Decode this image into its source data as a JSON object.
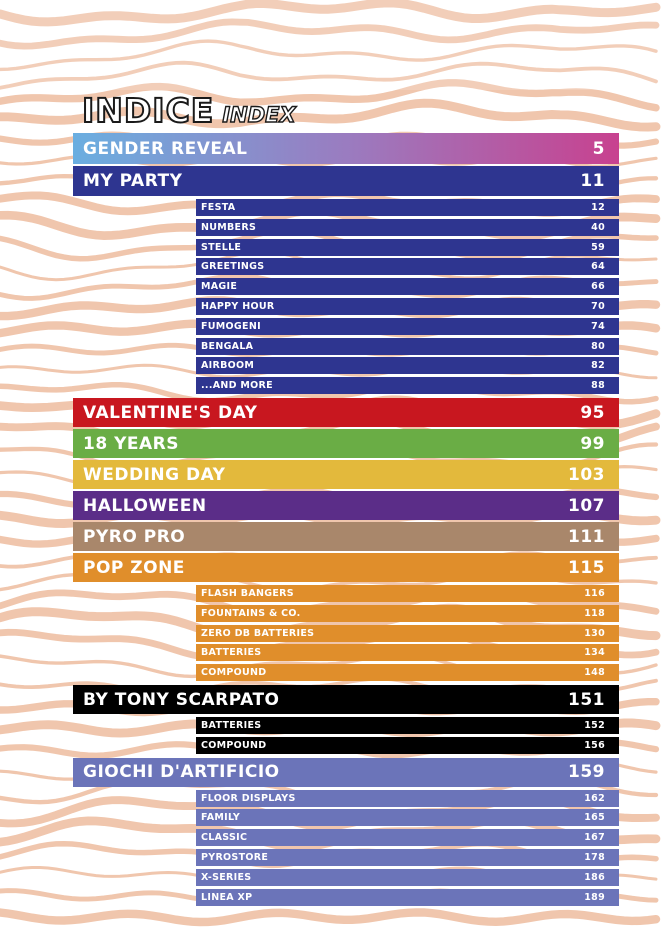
{
  "title": {
    "main": "INDICE",
    "sub": "INDEX"
  },
  "colors": {
    "gender_reveal_gradient": [
      "#6aaee0",
      "#9a7cc0",
      "#c8418f"
    ],
    "my_party": "#2e3590",
    "valentines_day": "#c8171f",
    "eighteen_years": "#6aad45",
    "wedding_day": "#e3b93c",
    "halloween": "#5b2d88",
    "pyro_pro": "#a9876b",
    "pop_zone": "#e08e2b",
    "by_tony_scarpato": "#000000",
    "giochi_dartificio": "#6b74b9",
    "background_waves": "#f0c6ad"
  },
  "sections": [
    {
      "label": "GENDER REVEAL",
      "page": "5",
      "color": "gender_reveal_gradient",
      "items": []
    },
    {
      "label": "MY PARTY",
      "page": "11",
      "color": "my_party",
      "items": [
        {
          "label": "FESTA",
          "page": "12"
        },
        {
          "label": "NUMBERS",
          "page": "40"
        },
        {
          "label": "STELLE",
          "page": "59"
        },
        {
          "label": "GREETINGS",
          "page": "64"
        },
        {
          "label": "MAGIE",
          "page": "66"
        },
        {
          "label": "HAPPY HOUR",
          "page": "70"
        },
        {
          "label": "FUMOGENI",
          "page": "74"
        },
        {
          "label": "BENGALA",
          "page": "80"
        },
        {
          "label": "AIRBOOM",
          "page": "82"
        },
        {
          "label": "...AND MORE",
          "page": "88"
        }
      ]
    },
    {
      "label": "VALENTINE'S DAY",
      "page": "95",
      "color": "valentines_day",
      "items": []
    },
    {
      "label": "18 YEARS",
      "page": "99",
      "color": "eighteen_years",
      "items": []
    },
    {
      "label": "WEDDING DAY",
      "page": "103",
      "color": "wedding_day",
      "items": []
    },
    {
      "label": "HALLOWEEN",
      "page": "107",
      "color": "halloween",
      "items": []
    },
    {
      "label": "PYRO PRO",
      "page": "111",
      "color": "pyro_pro",
      "items": []
    },
    {
      "label": "POP ZONE",
      "page": "115",
      "color": "pop_zone",
      "items": [
        {
          "label": "FLASH BANGERS",
          "page": "116"
        },
        {
          "label": "FOUNTAINS & CO.",
          "page": "118"
        },
        {
          "label": "ZERO DB BATTERIES",
          "page": "130"
        },
        {
          "label": "BATTERIES",
          "page": "134"
        },
        {
          "label": "COMPOUND",
          "page": "148"
        }
      ]
    },
    {
      "label": "BY TONY SCARPATO",
      "page": "151",
      "color": "by_tony_scarpato",
      "items": [
        {
          "label": "BATTERIES",
          "page": "152"
        },
        {
          "label": "COMPOUND",
          "page": "156"
        }
      ]
    },
    {
      "label": "GIOCHI D'ARTIFICIO",
      "page": "159",
      "color": "giochi_dartificio",
      "items": [
        {
          "label": "FLOOR DISPLAYS",
          "page": "162"
        },
        {
          "label": "FAMILY",
          "page": "165"
        },
        {
          "label": "CLASSIC",
          "page": "167"
        },
        {
          "label": "PYROSTORE",
          "page": "178"
        },
        {
          "label": "X-SERIES",
          "page": "186"
        },
        {
          "label": "LINEA XP",
          "page": "189"
        }
      ]
    }
  ]
}
